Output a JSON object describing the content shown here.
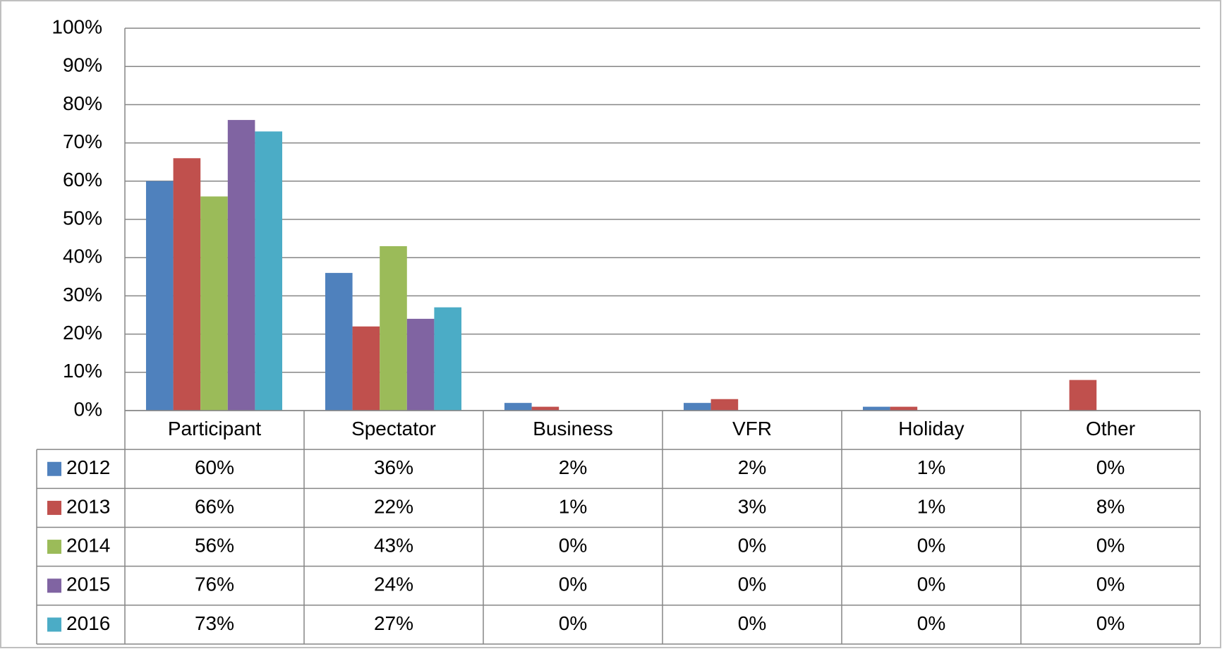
{
  "chart_data": {
    "type": "bar",
    "categories": [
      "Participant",
      "Spectator",
      "Business",
      "VFR",
      "Holiday",
      "Other"
    ],
    "series": [
      {
        "name": "2012",
        "color": "#4f81bd",
        "values": [
          60,
          36,
          2,
          2,
          1,
          0
        ],
        "value_labels": [
          "60%",
          "36%",
          "2%",
          "2%",
          "1%",
          "0%"
        ]
      },
      {
        "name": "2013",
        "color": "#c0504d",
        "values": [
          66,
          22,
          1,
          3,
          1,
          8
        ],
        "value_labels": [
          "66%",
          "22%",
          "1%",
          "3%",
          "1%",
          "8%"
        ]
      },
      {
        "name": "2014",
        "color": "#9bbb59",
        "values": [
          56,
          43,
          0,
          0,
          0,
          0
        ],
        "value_labels": [
          "56%",
          "43%",
          "0%",
          "0%",
          "0%",
          "0%"
        ]
      },
      {
        "name": "2015",
        "color": "#8064a2",
        "values": [
          76,
          24,
          0,
          0,
          0,
          0
        ],
        "value_labels": [
          "76%",
          "24%",
          "0%",
          "0%",
          "0%",
          "0%"
        ]
      },
      {
        "name": "2016",
        "color": "#4bacc6",
        "values": [
          73,
          27,
          0,
          0,
          0,
          0
        ],
        "value_labels": [
          "73%",
          "27%",
          "0%",
          "0%",
          "0%",
          "0%"
        ]
      }
    ],
    "ylim": [
      0,
      100
    ],
    "yticks": [
      {
        "value": 0,
        "label": "0%"
      },
      {
        "value": 10,
        "label": "10%"
      },
      {
        "value": 20,
        "label": "20%"
      },
      {
        "value": 30,
        "label": "30%"
      },
      {
        "value": 40,
        "label": "40%"
      },
      {
        "value": 50,
        "label": "50%"
      },
      {
        "value": 60,
        "label": "60%"
      },
      {
        "value": 70,
        "label": "70%"
      },
      {
        "value": 80,
        "label": "80%"
      },
      {
        "value": 90,
        "label": "90%"
      },
      {
        "value": 100,
        "label": "100%"
      }
    ],
    "grid": true
  }
}
